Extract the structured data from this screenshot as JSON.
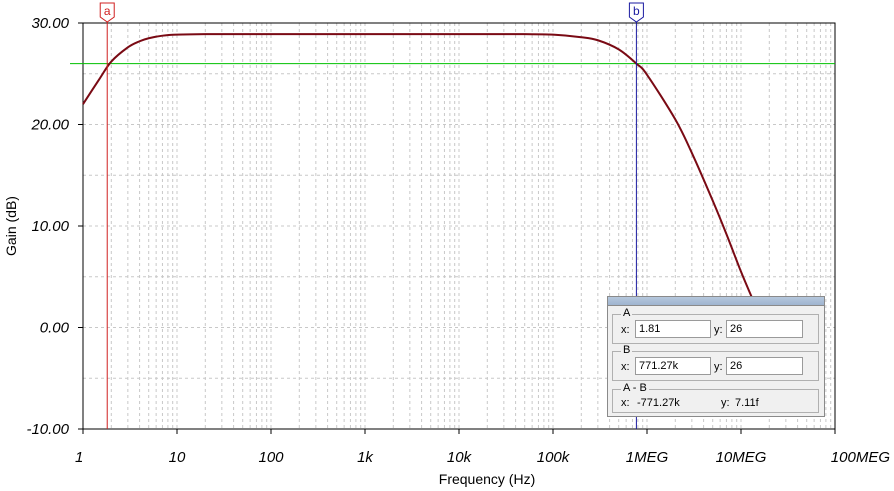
{
  "chart_data": {
    "type": "line",
    "xlabel": "Frequency (Hz)",
    "ylabel": "Gain (dB)",
    "x_scale": "log",
    "xlim": [
      1,
      100000000
    ],
    "ylim": [
      -10,
      30
    ],
    "grid": true,
    "x_ticks": [
      "1",
      "10",
      "100",
      "1k",
      "10k",
      "100k",
      "1MEG",
      "10MEG",
      "100MEG"
    ],
    "y_ticks": [
      "30.00",
      "20.00",
      "10.00",
      "0.00",
      "-10.00"
    ],
    "line_color": "#7a0a14",
    "series": [
      {
        "x": [
          1,
          1.5,
          2,
          3,
          4,
          5,
          7,
          10,
          20,
          50,
          100,
          1000,
          10000,
          50000,
          100000,
          200000,
          300000,
          500000,
          771000,
          1000000,
          2000000,
          3000000,
          5000000,
          7000000,
          10000000,
          13000000
        ],
        "y": [
          22,
          24.5,
          26.2,
          27.6,
          28.2,
          28.5,
          28.75,
          28.85,
          28.9,
          28.9,
          28.9,
          28.9,
          28.9,
          28.9,
          28.85,
          28.6,
          28.3,
          27.4,
          26,
          24.9,
          20.5,
          17.2,
          12.5,
          9.2,
          5.5,
          3
        ]
      }
    ],
    "cursors": [
      {
        "label": "a",
        "x": 1.81,
        "color": "#d02020"
      },
      {
        "label": "b",
        "x": 771270,
        "color": "#1a1aa0"
      }
    ],
    "reference_line": {
      "y": 26,
      "color": "#00c000"
    }
  },
  "cursor_panel": {
    "a": {
      "title": "A",
      "x_label": "x:",
      "x_value": "1.81",
      "y_label": "y:",
      "y_value": "26"
    },
    "b": {
      "title": "B",
      "x_label": "x:",
      "x_value": "771.27k",
      "y_label": "y:",
      "y_value": "26"
    },
    "diff": {
      "title": "A - B",
      "x_label": "x:",
      "x_value": "-771.27k",
      "y_label": "y:",
      "y_value": "7.11f"
    }
  }
}
